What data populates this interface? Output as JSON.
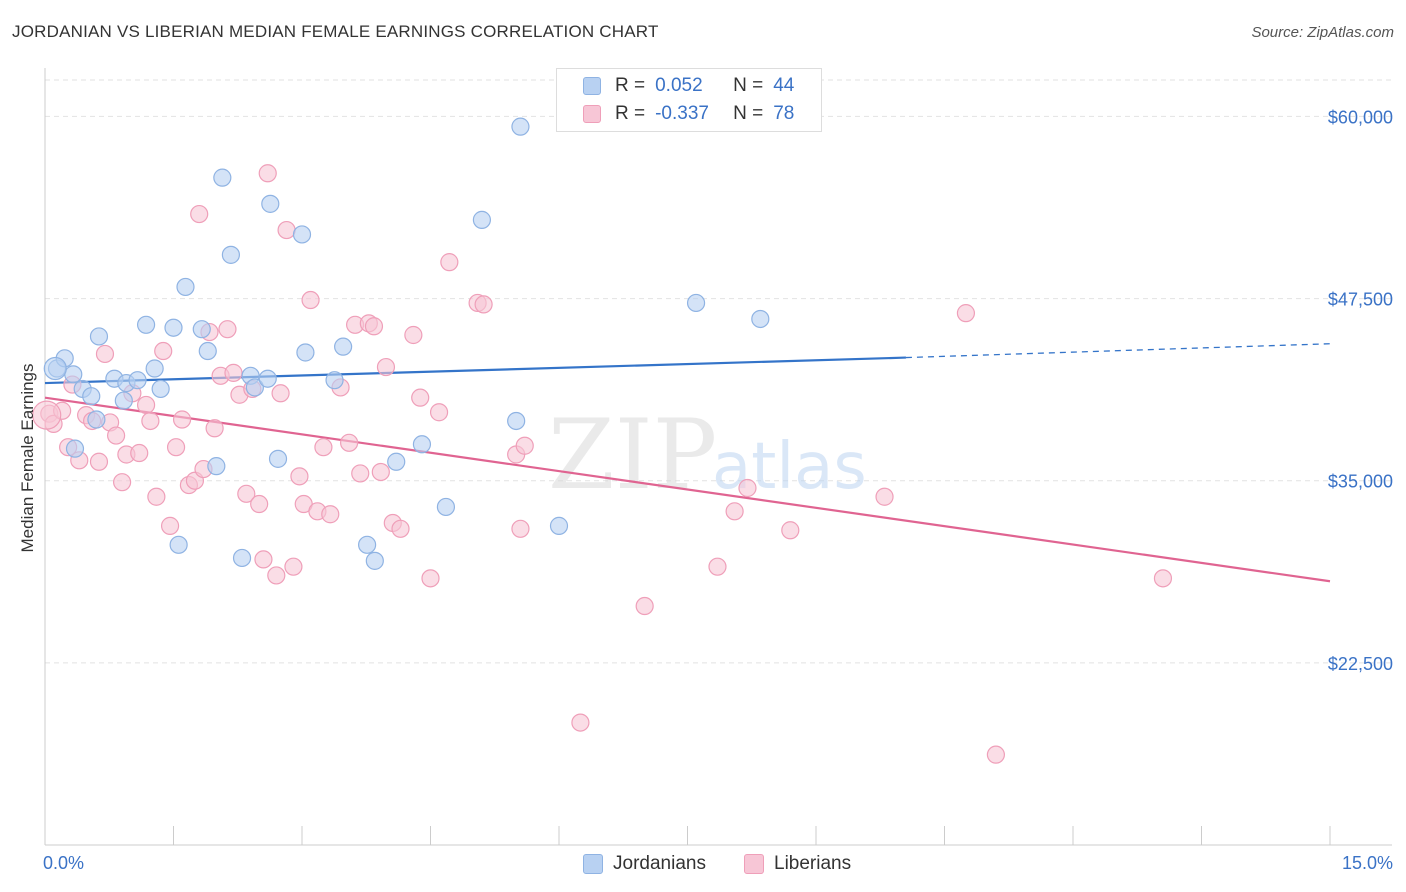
{
  "title": "JORDANIAN VS LIBERIAN MEDIAN FEMALE EARNINGS CORRELATION CHART",
  "source": "Source: ZipAtlas.com",
  "watermark": {
    "zip": "ZIP",
    "atlas": "atlas"
  },
  "stats": [
    {
      "r_label": "R =",
      "r_value": "0.052",
      "n_label": "N =",
      "n_value": "44"
    },
    {
      "r_label": "R =",
      "r_value": "-0.337",
      "n_label": "N =",
      "n_value": "78"
    }
  ],
  "legend": [
    "Jordanians",
    "Liberians"
  ],
  "colors": {
    "jordanian_fill": "#b8d1f2",
    "jordanian_stroke": "#8fb3e3",
    "jordanian_line": "#3474c9",
    "liberian_fill": "#f7c6d6",
    "liberian_stroke": "#ef9fb9",
    "liberian_line": "#e06491",
    "axis_label": "#3a72c6",
    "grid": "#e2e2e2"
  },
  "chart_data": {
    "type": "scatter",
    "title": "JORDANIAN VS LIBERIAN MEDIAN FEMALE EARNINGS CORRELATION CHART",
    "xlabel": "",
    "ylabel": "Median Female Earnings",
    "xlim": [
      0,
      15
    ],
    "ylim": [
      10000,
      62500
    ],
    "x_tick_labels": [
      "0.0%",
      "15.0%"
    ],
    "y_ticks": [
      22500,
      35000,
      47500,
      60000
    ],
    "y_tick_labels": [
      "$22,500",
      "$35,000",
      "$47,500",
      "$60,000"
    ],
    "series": [
      {
        "name": "Jordanians",
        "r": 0.052,
        "n": 44,
        "trend": {
          "x0": 0.0,
          "y0": 41700,
          "x1": 10.05,
          "y1": 43450,
          "dash_to_x": 15.0,
          "dash_to_y": 44400
        },
        "points": [
          [
            0.14,
            42700
          ],
          [
            0.23,
            43400
          ],
          [
            0.33,
            42300
          ],
          [
            0.44,
            41300
          ],
          [
            0.54,
            40800
          ],
          [
            0.63,
            44900
          ],
          [
            0.81,
            42000
          ],
          [
            0.95,
            41700
          ],
          [
            1.08,
            41900
          ],
          [
            1.18,
            45700
          ],
          [
            1.28,
            42700
          ],
          [
            1.35,
            41300
          ],
          [
            1.5,
            45500
          ],
          [
            1.64,
            48300
          ],
          [
            1.83,
            45400
          ],
          [
            1.9,
            43900
          ],
          [
            2.0,
            36000
          ],
          [
            2.07,
            55800
          ],
          [
            2.17,
            50500
          ],
          [
            2.3,
            29700
          ],
          [
            2.4,
            42200
          ],
          [
            2.45,
            41400
          ],
          [
            2.6,
            42000
          ],
          [
            2.63,
            54000
          ],
          [
            2.72,
            36500
          ],
          [
            3.0,
            51900
          ],
          [
            3.04,
            43800
          ],
          [
            3.38,
            41900
          ],
          [
            3.48,
            44200
          ],
          [
            3.76,
            30600
          ],
          [
            3.85,
            29500
          ],
          [
            4.1,
            36300
          ],
          [
            4.4,
            37500
          ],
          [
            4.68,
            33200
          ],
          [
            5.1,
            52900
          ],
          [
            5.5,
            39100
          ],
          [
            5.55,
            59300
          ],
          [
            6.0,
            31900
          ],
          [
            7.6,
            47200
          ],
          [
            8.35,
            46100
          ],
          [
            0.35,
            37200
          ],
          [
            0.6,
            39200
          ],
          [
            0.92,
            40500
          ],
          [
            1.56,
            30600
          ]
        ]
      },
      {
        "name": "Liberians",
        "r": -0.337,
        "n": 78,
        "trend": {
          "x0": 0.0,
          "y0": 40700,
          "x1": 15.0,
          "y1": 28100
        },
        "points": [
          [
            0.05,
            39600
          ],
          [
            0.1,
            38900
          ],
          [
            0.2,
            39800
          ],
          [
            0.27,
            37300
          ],
          [
            0.32,
            41600
          ],
          [
            0.4,
            36400
          ],
          [
            0.48,
            39500
          ],
          [
            0.55,
            39100
          ],
          [
            0.63,
            36300
          ],
          [
            0.7,
            43700
          ],
          [
            0.76,
            39000
          ],
          [
            0.83,
            38100
          ],
          [
            0.9,
            34900
          ],
          [
            0.95,
            36800
          ],
          [
            1.02,
            41000
          ],
          [
            1.1,
            36900
          ],
          [
            1.18,
            40200
          ],
          [
            1.23,
            39100
          ],
          [
            1.3,
            33900
          ],
          [
            1.38,
            43900
          ],
          [
            1.46,
            31900
          ],
          [
            1.53,
            37300
          ],
          [
            1.6,
            39200
          ],
          [
            1.68,
            34700
          ],
          [
            1.75,
            35000
          ],
          [
            1.8,
            53300
          ],
          [
            1.85,
            35800
          ],
          [
            1.92,
            45200
          ],
          [
            1.98,
            38600
          ],
          [
            2.05,
            42200
          ],
          [
            2.13,
            45400
          ],
          [
            2.2,
            42400
          ],
          [
            2.27,
            40900
          ],
          [
            2.35,
            34100
          ],
          [
            2.42,
            41300
          ],
          [
            2.5,
            33400
          ],
          [
            2.55,
            29600
          ],
          [
            2.6,
            56100
          ],
          [
            2.7,
            28500
          ],
          [
            2.75,
            41000
          ],
          [
            2.82,
            52200
          ],
          [
            2.9,
            29100
          ],
          [
            2.97,
            35300
          ],
          [
            3.02,
            33400
          ],
          [
            3.1,
            47400
          ],
          [
            3.18,
            32900
          ],
          [
            3.25,
            37300
          ],
          [
            3.33,
            32700
          ],
          [
            3.45,
            41400
          ],
          [
            3.55,
            37600
          ],
          [
            3.62,
            45700
          ],
          [
            3.68,
            35500
          ],
          [
            3.78,
            45800
          ],
          [
            3.84,
            45600
          ],
          [
            3.92,
            35600
          ],
          [
            3.98,
            42800
          ],
          [
            4.06,
            32100
          ],
          [
            4.15,
            31700
          ],
          [
            4.3,
            45000
          ],
          [
            4.38,
            40700
          ],
          [
            4.5,
            28300
          ],
          [
            4.6,
            39700
          ],
          [
            4.72,
            50000
          ],
          [
            5.05,
            47200
          ],
          [
            5.12,
            47100
          ],
          [
            5.5,
            36800
          ],
          [
            5.55,
            31700
          ],
          [
            5.6,
            37400
          ],
          [
            6.25,
            18400
          ],
          [
            7.0,
            26400
          ],
          [
            7.85,
            29100
          ],
          [
            8.05,
            32900
          ],
          [
            8.2,
            34500
          ],
          [
            8.7,
            31600
          ],
          [
            9.8,
            33900
          ],
          [
            10.75,
            46500
          ],
          [
            11.1,
            16200
          ],
          [
            13.05,
            28300
          ]
        ]
      }
    ]
  }
}
